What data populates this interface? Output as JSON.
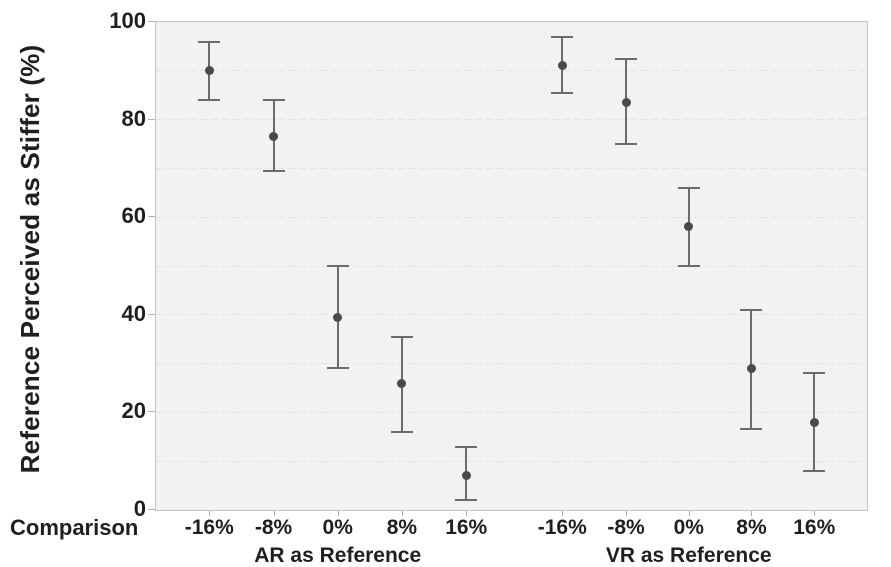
{
  "chart_data": {
    "type": "scatter",
    "subtype": "point-estimates-with-error-bars",
    "title": "",
    "ylabel": "Reference Perceived as Stiffer (%)",
    "xlabel": "Comparison",
    "ylim": [
      0,
      100
    ],
    "yticks": [
      0,
      20,
      40,
      60,
      80,
      100
    ],
    "gridline_step": 10,
    "grid": "horizontal dashed",
    "legend": "none",
    "categories": [
      "-16%",
      "-8%",
      "0%",
      "8%",
      "16%"
    ],
    "groups": [
      {
        "label": "AR as Reference",
        "points": [
          {
            "category": "-16%",
            "mean": 90,
            "ci_low": 84,
            "ci_high": 96
          },
          {
            "category": "-8%",
            "mean": 76.5,
            "ci_low": 69.5,
            "ci_high": 84
          },
          {
            "category": "0%",
            "mean": 39.5,
            "ci_low": 29,
            "ci_high": 50
          },
          {
            "category": "8%",
            "mean": 26,
            "ci_low": 16,
            "ci_high": 35.5
          },
          {
            "category": "16%",
            "mean": 7,
            "ci_low": 2,
            "ci_high": 13
          }
        ]
      },
      {
        "label": "VR as Reference",
        "points": [
          {
            "category": "-16%",
            "mean": 91,
            "ci_low": 85.5,
            "ci_high": 97
          },
          {
            "category": "-8%",
            "mean": 83.5,
            "ci_low": 75,
            "ci_high": 92.5
          },
          {
            "category": "0%",
            "mean": 58,
            "ci_low": 50,
            "ci_high": 66
          },
          {
            "category": "8%",
            "mean": 29,
            "ci_low": 16.5,
            "ci_high": 41
          },
          {
            "category": "16%",
            "mean": 18,
            "ci_low": 8,
            "ci_high": 28
          }
        ]
      }
    ],
    "colors": {
      "point": "#4a4a4a",
      "error_bar": "#6b6b6b",
      "plot_background": "#f2f2f2",
      "gridline": "#e3e3e3",
      "border": "#c3c3c3",
      "text": "#1f1f1f"
    }
  }
}
